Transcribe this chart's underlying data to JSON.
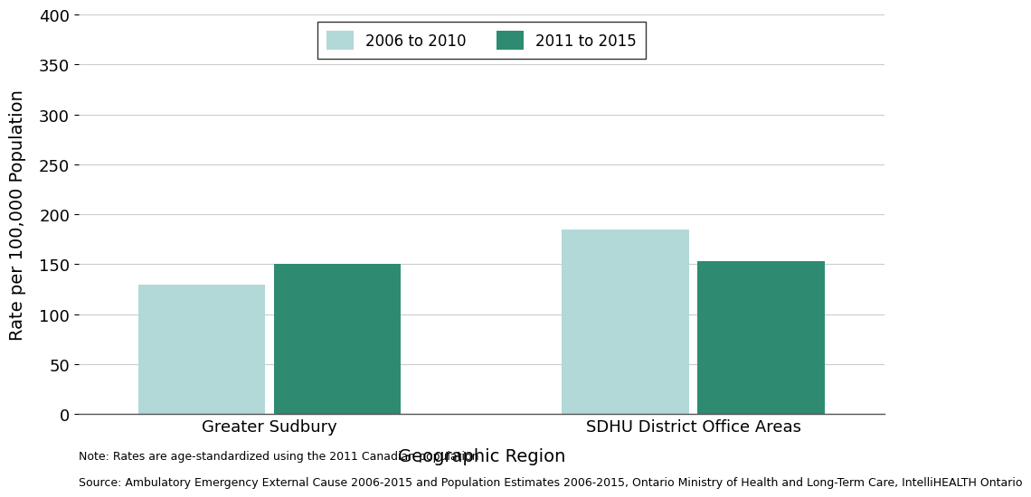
{
  "categories": [
    "Greater Sudbury",
    "SDHU District Office Areas"
  ],
  "series": [
    {
      "label": "2006 to 2010",
      "values": [
        130,
        185
      ],
      "color": "#b2d8d8"
    },
    {
      "label": "2011 to 2015",
      "values": [
        150,
        153
      ],
      "color": "#2e8b72"
    }
  ],
  "ylabel": "Rate per 100,000 Population",
  "xlabel": "Geographic Region",
  "ylim": [
    0,
    400
  ],
  "yticks": [
    0,
    50,
    100,
    150,
    200,
    250,
    300,
    350,
    400
  ],
  "group_centers": [
    1.0,
    3.0
  ],
  "bar_width": 0.6,
  "background_color": "#ffffff",
  "grid_color": "#cccccc",
  "legend_fontsize": 12,
  "axis_label_fontsize": 14,
  "tick_fontsize": 13,
  "note_fontsize": 9,
  "note_line1": "Note: Rates are age-standardized using the 2011 Canadian population",
  "note_line2": "Source: Ambulatory Emergency External Cause 2006-2015 and Population Estimates 2006-2015, Ontario Ministry of Health and Long-Term Care, IntelliHEALTH Ontario"
}
